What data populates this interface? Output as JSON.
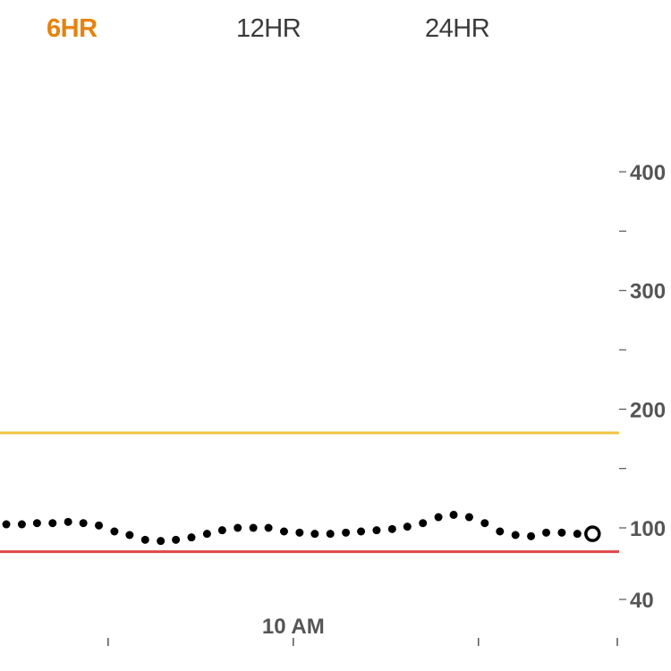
{
  "tabs": [
    {
      "label": "6HR",
      "active": true
    },
    {
      "label": "12HR",
      "active": false
    },
    {
      "label": "24HR",
      "active": false
    }
  ],
  "colors": {
    "accent": "#e6820e",
    "high_threshold": "#f0c443",
    "low_threshold": "#e04848",
    "points": "#000000",
    "axis_text": "#555555"
  },
  "chart_data": {
    "type": "scatter",
    "title": "",
    "xlabel": "",
    "ylabel": "",
    "y_ticks": [
      {
        "value": 400,
        "label": "400"
      },
      {
        "value": 350,
        "label": ""
      },
      {
        "value": 300,
        "label": "300"
      },
      {
        "value": 250,
        "label": ""
      },
      {
        "value": 200,
        "label": "200"
      },
      {
        "value": 150,
        "label": ""
      },
      {
        "value": 100,
        "label": "100"
      },
      {
        "value": 40,
        "label": "40"
      }
    ],
    "x_ticks": [
      {
        "value": 9.5,
        "label": ""
      },
      {
        "value": 10.0,
        "label": "10 AM"
      },
      {
        "value": 10.5,
        "label": ""
      },
      {
        "value": 10.875,
        "label": ""
      }
    ],
    "x_unit": "hour of day",
    "xlim": [
      9.208,
      10.875
    ],
    "thresholds": {
      "high": 180,
      "low": 80
    },
    "series": [
      {
        "x": [
          9.225,
          9.267,
          9.308,
          9.35,
          9.392,
          9.433,
          9.475,
          9.517,
          9.558,
          9.6,
          9.642,
          9.683,
          9.725,
          9.767,
          9.808,
          9.85,
          9.892,
          9.933,
          9.975,
          10.017,
          10.058,
          10.1,
          10.142,
          10.183,
          10.225,
          10.267,
          10.308,
          10.35,
          10.392,
          10.433,
          10.475,
          10.517,
          10.558,
          10.6,
          10.642,
          10.683,
          10.725,
          10.767
        ],
        "values": [
          103,
          103,
          104,
          104,
          105,
          104,
          102,
          97,
          94,
          90,
          89,
          90,
          92,
          95,
          98,
          100,
          100,
          100,
          97,
          96,
          95,
          95,
          96,
          97,
          98,
          99,
          101,
          104,
          109,
          111,
          109,
          104,
          97,
          94,
          93,
          96,
          96,
          95
        ]
      }
    ],
    "current_value": 95,
    "grid": false,
    "legend": "none"
  }
}
